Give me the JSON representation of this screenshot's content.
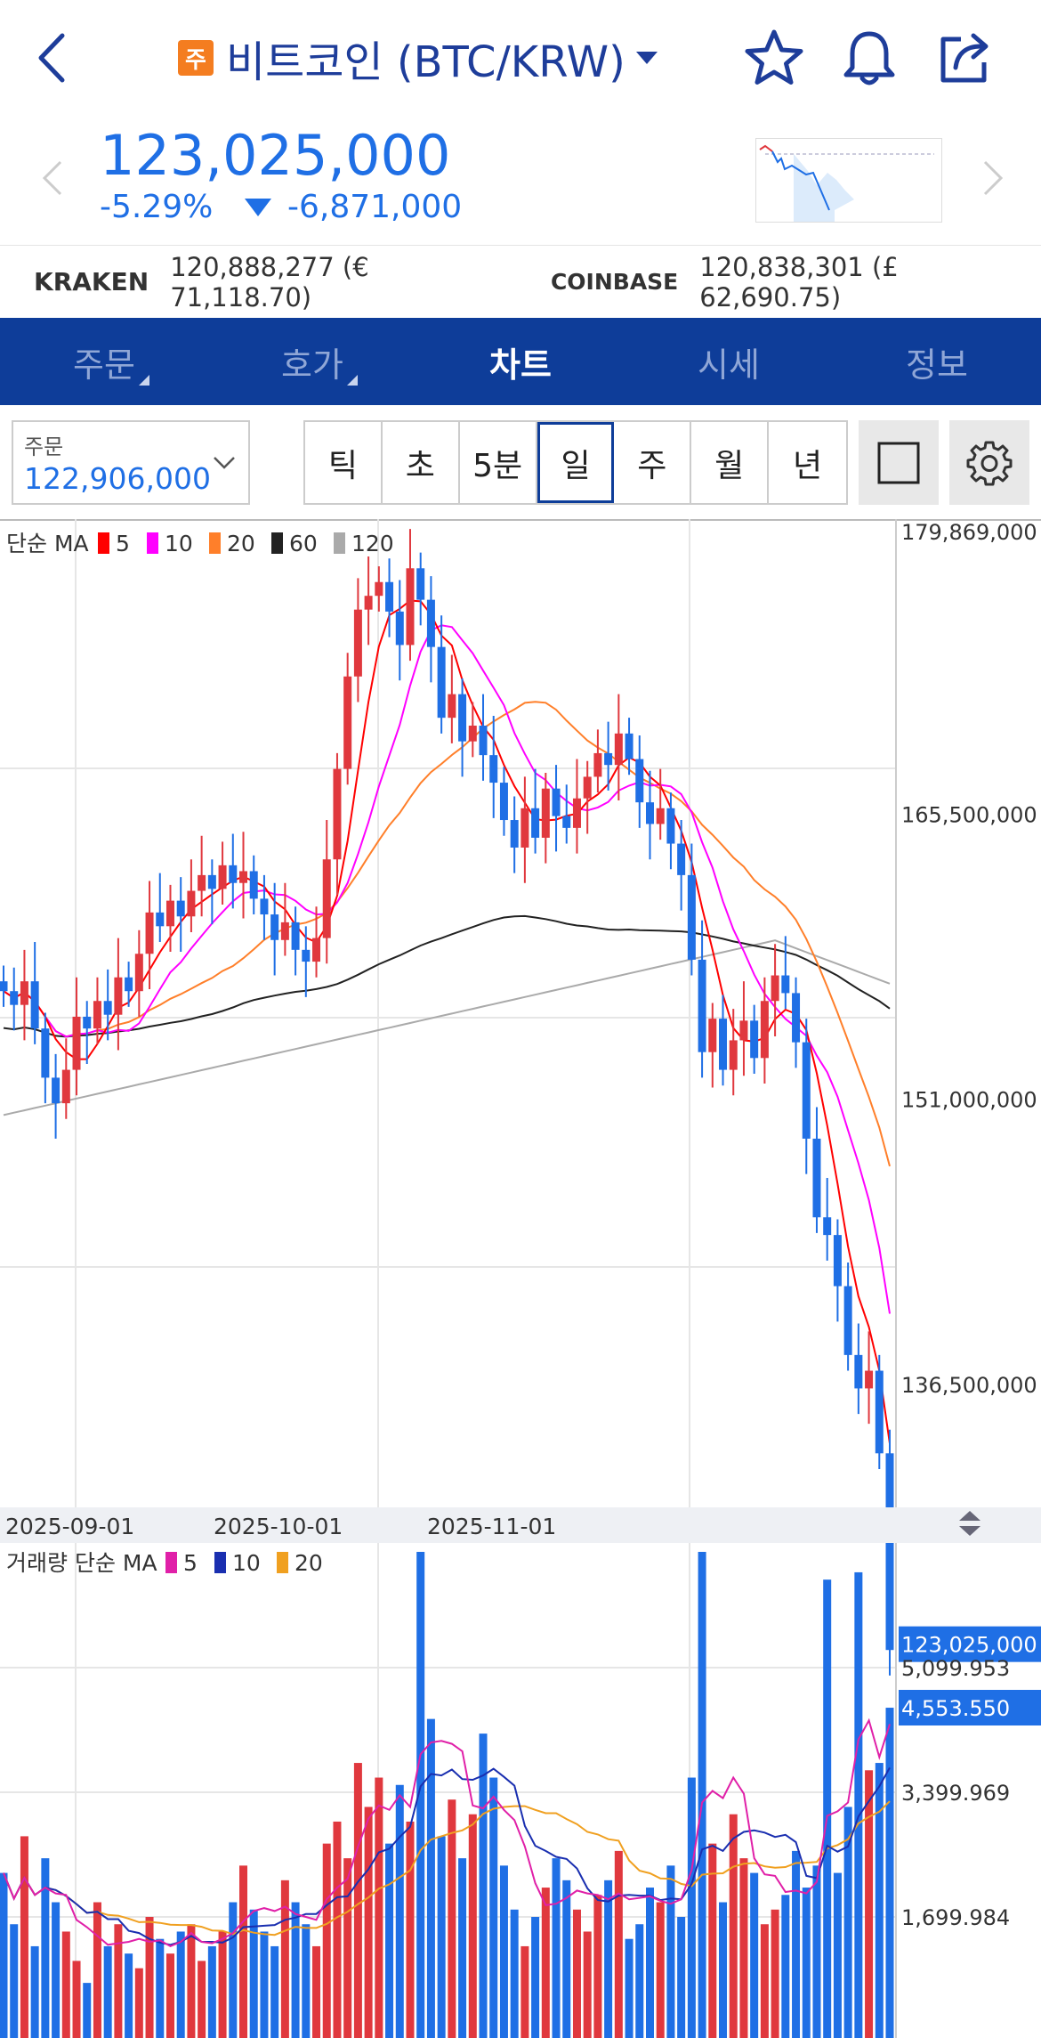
{
  "header": {
    "badge": "주",
    "title": "비트코인 (BTC/KRW)"
  },
  "price": {
    "current": "123,025,000",
    "change_pct": "-5.29%",
    "change_abs": "-6,871,000"
  },
  "exchanges": [
    {
      "name": "KRAKEN",
      "value": "120,888,277 (€ 71,118.70)"
    },
    {
      "name": "COINBASE",
      "value": "120,838,301 (£ 62,690.75)"
    }
  ],
  "tabs": [
    {
      "label": "주문",
      "active": false
    },
    {
      "label": "호가",
      "active": false
    },
    {
      "label": "차트",
      "active": true
    },
    {
      "label": "시세",
      "active": false
    },
    {
      "label": "정보",
      "active": false
    }
  ],
  "order": {
    "label": "주문",
    "value": "122,906,000"
  },
  "periods": [
    "틱",
    "초",
    "5분",
    "일",
    "주",
    "월",
    "년"
  ],
  "active_period": "일",
  "colors": {
    "brand": "#0e3d99",
    "down": "#1f6fe5",
    "up": "#e0383e",
    "ma5": "#ff0000",
    "ma10": "#ff00ff",
    "ma20": "#ff7f2a",
    "ma60": "#222222",
    "ma120": "#aaaaaa"
  },
  "chart_data": [
    {
      "type": "candlestick",
      "legend_prefix": "단순 MA",
      "legend": [
        {
          "name": "5",
          "color": "#ff0000"
        },
        {
          "name": "10",
          "color": "#ff00ff"
        },
        {
          "name": "20",
          "color": "#ff7f2a"
        },
        {
          "name": "60",
          "color": "#222222"
        },
        {
          "name": "120",
          "color": "#aaaaaa"
        }
      ],
      "y_ticks": [
        "179,869,000",
        "165,500,000",
        "151,000,000",
        "136,500,000"
      ],
      "y_tick_values": [
        179869000,
        165500000,
        151000000,
        136500000
      ],
      "current_label": "123,025,000",
      "x_ticks": [
        "2025-09-01",
        "2025-10-01",
        "2025-11-01"
      ],
      "grid": true
    },
    {
      "type": "bar",
      "legend_prefix": "거래량 단순 MA",
      "legend": [
        {
          "name": "5",
          "color": "#e020a8"
        },
        {
          "name": "10",
          "color": "#1a2fb0"
        },
        {
          "name": "20",
          "color": "#f0a020"
        }
      ],
      "y_ticks": [
        "5,099.953",
        "3,399.969",
        "1,699.984"
      ],
      "y_tick_values": [
        5099.953,
        3399.969,
        1699.984
      ],
      "current_label": "4,553.550",
      "grid": true
    }
  ]
}
